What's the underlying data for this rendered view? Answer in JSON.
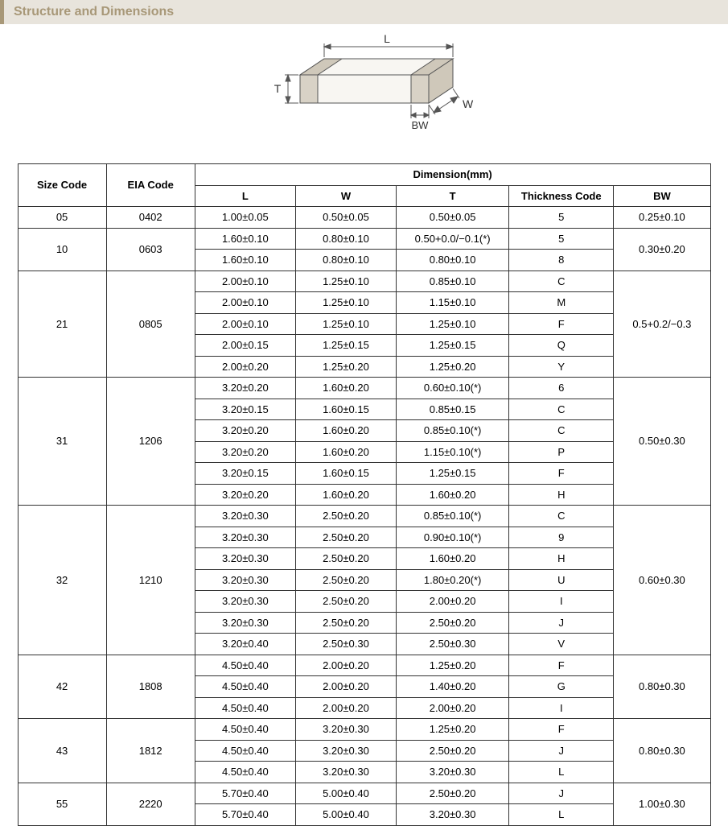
{
  "header": {
    "title": "Structure and Dimensions"
  },
  "diagram": {
    "labels": {
      "L": "L",
      "W": "W",
      "T": "T",
      "BW": "BW"
    },
    "stroke": "#555555",
    "fill": "#f8f6f2"
  },
  "table": {
    "headers": {
      "size_code": "Size Code",
      "eia_code": "EIA Code",
      "dimension_group": "Dimension(mm)",
      "L": "L",
      "W": "W",
      "T": "T",
      "thickness_code": "Thickness Code",
      "BW": "BW"
    },
    "groups": [
      {
        "size_code": "05",
        "eia_code": "0402",
        "bw": "0.25±0.10",
        "rows": [
          {
            "L": "1.00±0.05",
            "W": "0.50±0.05",
            "T": "0.50±0.05",
            "tc": "5"
          }
        ]
      },
      {
        "size_code": "10",
        "eia_code": "0603",
        "bw": "0.30±0.20",
        "rows": [
          {
            "L": "1.60±0.10",
            "W": "0.80±0.10",
            "T": "0.50+0.0/−0.1(*)",
            "tc": "5"
          },
          {
            "L": "1.60±0.10",
            "W": "0.80±0.10",
            "T": "0.80±0.10",
            "tc": "8"
          }
        ]
      },
      {
        "size_code": "21",
        "eia_code": "0805",
        "bw": "0.5+0.2/−0.3",
        "rows": [
          {
            "L": "2.00±0.10",
            "W": "1.25±0.10",
            "T": "0.85±0.10",
            "tc": "C"
          },
          {
            "L": "2.00±0.10",
            "W": "1.25±0.10",
            "T": "1.15±0.10",
            "tc": "M"
          },
          {
            "L": "2.00±0.10",
            "W": "1.25±0.10",
            "T": "1.25±0.10",
            "tc": "F"
          },
          {
            "L": "2.00±0.15",
            "W": "1.25±0.15",
            "T": "1.25±0.15",
            "tc": "Q"
          },
          {
            "L": "2.00±0.20",
            "W": "1.25±0.20",
            "T": "1.25±0.20",
            "tc": "Y"
          }
        ]
      },
      {
        "size_code": "31",
        "eia_code": "1206",
        "bw": "0.50±0.30",
        "rows": [
          {
            "L": "3.20±0.20",
            "W": "1.60±0.20",
            "T": "0.60±0.10(*)",
            "tc": "6"
          },
          {
            "L": "3.20±0.15",
            "W": "1.60±0.15",
            "T": "0.85±0.15",
            "tc": "C"
          },
          {
            "L": "3.20±0.20",
            "W": "1.60±0.20",
            "T": "0.85±0.10(*)",
            "tc": "C"
          },
          {
            "L": "3.20±0.20",
            "W": "1.60±0.20",
            "T": "1.15±0.10(*)",
            "tc": "P"
          },
          {
            "L": "3.20±0.15",
            "W": "1.60±0.15",
            "T": "1.25±0.15",
            "tc": "F"
          },
          {
            "L": "3.20±0.20",
            "W": "1.60±0.20",
            "T": "1.60±0.20",
            "tc": "H"
          }
        ]
      },
      {
        "size_code": "32",
        "eia_code": "1210",
        "bw": "0.60±0.30",
        "rows": [
          {
            "L": "3.20±0.30",
            "W": "2.50±0.20",
            "T": "0.85±0.10(*)",
            "tc": "C"
          },
          {
            "L": "3.20±0.30",
            "W": "2.50±0.20",
            "T": "0.90±0.10(*)",
            "tc": "9"
          },
          {
            "L": "3.20±0.30",
            "W": "2.50±0.20",
            "T": "1.60±0.20",
            "tc": "H"
          },
          {
            "L": "3.20±0.30",
            "W": "2.50±0.20",
            "T": "1.80±0.20(*)",
            "tc": "U"
          },
          {
            "L": "3.20±0.30",
            "W": "2.50±0.20",
            "T": "2.00±0.20",
            "tc": "I"
          },
          {
            "L": "3.20±0.30",
            "W": "2.50±0.20",
            "T": "2.50±0.20",
            "tc": "J"
          },
          {
            "L": "3.20±0.40",
            "W": "2.50±0.30",
            "T": "2.50±0.30",
            "tc": "V"
          }
        ]
      },
      {
        "size_code": "42",
        "eia_code": "1808",
        "bw": "0.80±0.30",
        "rows": [
          {
            "L": "4.50±0.40",
            "W": "2.00±0.20",
            "T": "1.25±0.20",
            "tc": "F"
          },
          {
            "L": "4.50±0.40",
            "W": "2.00±0.20",
            "T": "1.40±0.20",
            "tc": "G"
          },
          {
            "L": "4.50±0.40",
            "W": "2.00±0.20",
            "T": "2.00±0.20",
            "tc": "I"
          }
        ]
      },
      {
        "size_code": "43",
        "eia_code": "1812",
        "bw": "0.80±0.30",
        "rows": [
          {
            "L": "4.50±0.40",
            "W": "3.20±0.30",
            "T": "1.25±0.20",
            "tc": "F"
          },
          {
            "L": "4.50±0.40",
            "W": "3.20±0.30",
            "T": "2.50±0.20",
            "tc": "J"
          },
          {
            "L": "4.50±0.40",
            "W": "3.20±0.30",
            "T": "3.20±0.30",
            "tc": "L"
          }
        ]
      },
      {
        "size_code": "55",
        "eia_code": "2220",
        "bw": "1.00±0.30",
        "rows": [
          {
            "L": "5.70±0.40",
            "W": "5.00±0.40",
            "T": "2.50±0.20",
            "tc": "J"
          },
          {
            "L": "5.70±0.40",
            "W": "5.00±0.40",
            "T": "3.20±0.30",
            "tc": "L"
          }
        ]
      }
    ]
  }
}
